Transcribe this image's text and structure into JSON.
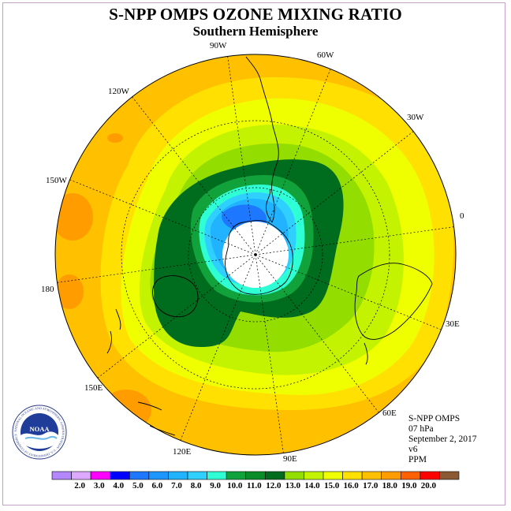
{
  "title": "S-NPP OMPS OZONE MIXING RATIO",
  "subtitle": "Southern Hemisphere",
  "info": {
    "instrument": "S-NPP OMPS",
    "level": "07 hPa",
    "date": "September 2, 2017",
    "version": "v6",
    "units": "PPM"
  },
  "logo": {
    "text": "NOAA",
    "ring_text": "NATIONAL OCEANIC AND ATMOSPHERIC ADMINISTRATION · U.S. DEPARTMENT OF COMMERCE"
  },
  "longitude_labels": [
    "0",
    "30E",
    "60E",
    "90E",
    "120E",
    "150E",
    "180",
    "150W",
    "120W",
    "90W",
    "60W",
    "30W"
  ],
  "colorbar": {
    "colors": [
      "#b388ff",
      "#dda8ff",
      "#ff00ff",
      "#0000ff",
      "#1e78ff",
      "#1e96ff",
      "#21b3ff",
      "#2fd0ff",
      "#2fffd5",
      "#12a23c",
      "#0a8c2a",
      "#006c1d",
      "#93dd00",
      "#c4f300",
      "#f0ff00",
      "#ffe000",
      "#ffc000",
      "#ff9d00",
      "#ff6000",
      "#ff0000",
      "#8b5a35"
    ],
    "labels": [
      "2.0",
      "3.0",
      "4.0",
      "5.0",
      "6.0",
      "7.0",
      "8.0",
      "9.0",
      "10.0",
      "11.0",
      "12.0",
      "13.0",
      "14.0",
      "15.0",
      "16.0",
      "17.0",
      "18.0",
      "19.0",
      "20.0"
    ]
  }
}
